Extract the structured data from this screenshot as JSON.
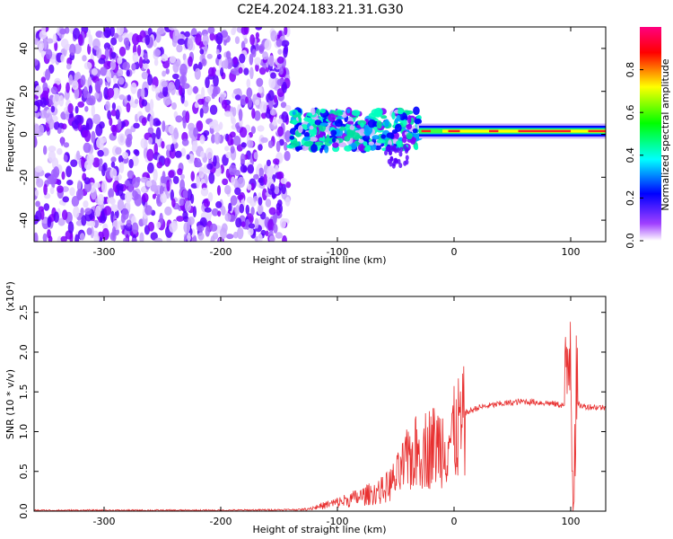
{
  "figure_title": "C2E4.2024.183.21.31.G30",
  "chart_data": [
    {
      "type": "heatmap",
      "xlabel": "Height of straight line (km)",
      "ylabel": "Frequency (Hz)",
      "xlim": [
        -360,
        130
      ],
      "ylim": [
        -50,
        50
      ],
      "x_ticks": [
        -300,
        -200,
        -100,
        0,
        100
      ],
      "y_ticks": [
        -40,
        -20,
        0,
        20,
        40
      ],
      "colorbar": {
        "label": "Normalized spectral amplitude",
        "range": [
          0,
          1
        ],
        "ticks": [
          "0.0",
          "0.2",
          "0.4",
          "0.6",
          "0.8"
        ],
        "colormap": [
          "#ffffff",
          "#8000ff",
          "#0000ff",
          "#00ffff",
          "#00ff00",
          "#ffff00",
          "#ff0000",
          "#ff0080"
        ]
      },
      "regions": [
        {
          "x_range": [
            -360,
            -140
          ],
          "y_range": [
            -50,
            50
          ],
          "level": "0.1-0.3 noise"
        },
        {
          "x_range": [
            -140,
            -30
          ],
          "y_range": [
            -15,
            12
          ],
          "level": "0.2-0.5 scattered"
        },
        {
          "x_range": [
            -30,
            130
          ],
          "y_range": [
            -2,
            4
          ],
          "level": "0.6-1.0 narrow band near 1 Hz"
        }
      ]
    },
    {
      "type": "line",
      "xlabel": "Height of straight line (km)",
      "ylabel": "SNR (10 * v/v)",
      "y_multiplier": "(x10⁴)",
      "xlim": [
        -360,
        130
      ],
      "ylim": [
        0,
        2.7
      ],
      "x_ticks": [
        -300,
        -200,
        -100,
        0,
        100
      ],
      "y_ticks": [
        "0.0",
        "0.5",
        "1.0",
        "1.5",
        "2.0",
        "2.5"
      ],
      "series_color": "#e83030",
      "series_envelope": {
        "x": [
          -360,
          -200,
          -130,
          -120,
          -100,
          -80,
          -60,
          -50,
          -40,
          -30,
          -20,
          -10,
          0,
          5,
          20,
          40,
          60,
          80,
          95,
          100,
          102,
          104,
          110,
          130
        ],
        "y": [
          0.01,
          0.01,
          0.02,
          0.05,
          0.12,
          0.2,
          0.3,
          0.45,
          0.7,
          0.85,
          0.9,
          0.95,
          1.05,
          1.2,
          1.3,
          1.35,
          1.38,
          1.36,
          1.33,
          2.3,
          0.1,
          1.35,
          1.32,
          1.3
        ]
      }
    }
  ]
}
